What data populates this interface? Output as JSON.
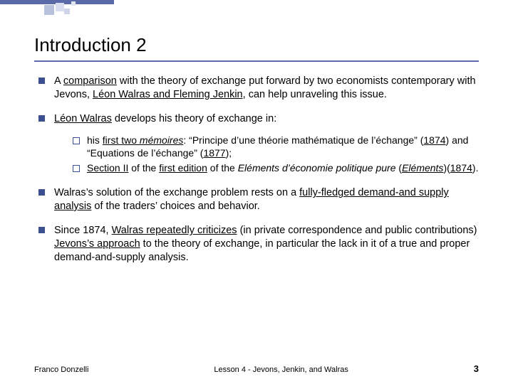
{
  "theme": {
    "accent": "#5a6aa8",
    "bullet_fill": "#3c4f8f",
    "background": "#ffffff",
    "text_color": "#000000",
    "title_fontsize_pt": 20,
    "body_fontsize_pt": 11,
    "sub_fontsize_pt": 10.5,
    "footer_fontsize_pt": 8
  },
  "title": "Introduction 2",
  "bullets": [
    {
      "html": "A <span class='u'>comparison</span> with the theory of exchange put forward by two economists contemporary with Jevons, <span class='u'>Léon Walras and Fleming Jenkin</span>, can help unraveling this issue."
    },
    {
      "html": "<span class='u'>Léon Walras</span> develops his theory of exchange in:",
      "sub": [
        {
          "html": "his <span class='u'>first two <span class='i'>mémoires</span></span>: “Principe d’une théorie mathématique de l’échange” (<span class='u'>1874</span>) and “Equations de l’échange” (<span class='u'>1877</span>);"
        },
        {
          "html": "<span class='u'>Section II</span> of the <span class='u'>first edition</span> of the <span class='i'>Eléments d’économie politique pure</span> (<span class='i u'>Eléments</span>)(<span class='u'>1874</span>)."
        }
      ]
    },
    {
      "html": "Walras’s solution of the exchange problem rests on a <span class='u'>fully-fledged demand-and supply analysis</span> of the traders’ choices and behavior."
    },
    {
      "html": "Since 1874, <span class='u'>Walras repeatedly criticizes</span> (in private correspondence and public contributions) <span class='u'>Jevons’s approach</span> to the theory of exchange, in particular the lack in it of a true and proper demand-and-supply analysis."
    }
  ],
  "footer": {
    "author": "Franco Donzelli",
    "lesson": "Lesson 4 - Jevons, Jenkin, and Walras",
    "page": "3"
  }
}
